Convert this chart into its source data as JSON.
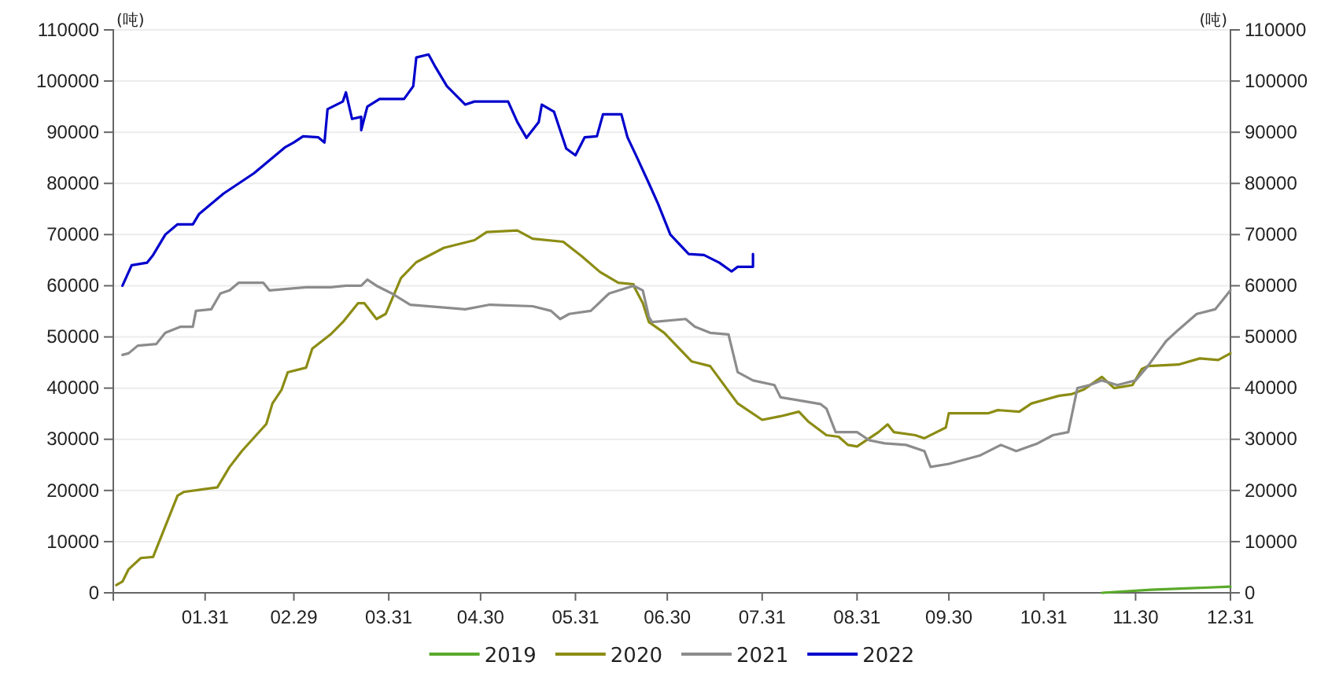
{
  "chart_data": {
    "type": "line",
    "ylabel": "(吨)",
    "y2label": "(吨)",
    "xlim": [
      "--01-01",
      "--12-31"
    ],
    "xticks": [
      {
        "value": "--01-31",
        "label": "01.31"
      },
      {
        "value": "--02-29",
        "label": "02.29"
      },
      {
        "value": "--03-31",
        "label": "03.31"
      },
      {
        "value": "--04-30",
        "label": "04.30"
      },
      {
        "value": "--05-31",
        "label": "05.31"
      },
      {
        "value": "--06-30",
        "label": "06.30"
      },
      {
        "value": "--07-31",
        "label": "07.31"
      },
      {
        "value": "--08-31",
        "label": "08.31"
      },
      {
        "value": "--09-30",
        "label": "09.30"
      },
      {
        "value": "--10-31",
        "label": "10.31"
      },
      {
        "value": "--11-30",
        "label": "11.30"
      },
      {
        "value": "--12-31",
        "label": "12.31"
      }
    ],
    "ylim": [
      0,
      110000
    ],
    "yticks": [
      0,
      10000,
      20000,
      30000,
      40000,
      50000,
      60000,
      70000,
      80000,
      90000,
      100000,
      110000
    ],
    "y2lim": [
      0,
      110000
    ],
    "y2ticks": [
      0,
      10000,
      20000,
      30000,
      40000,
      50000,
      60000,
      70000,
      80000,
      90000,
      100000,
      110000
    ],
    "grid": "y",
    "legend": "bottom",
    "line_style": "solid",
    "marker": "none",
    "series": [
      {
        "name": "2019",
        "color": "#5aaa2a",
        "x": [
          "--11-19",
          "--12-05",
          "--12-31"
        ],
        "values": [
          0,
          600,
          1200
        ]
      },
      {
        "name": "2020",
        "color": "#8c8c14",
        "x": [
          "--01-02",
          "--01-04",
          "--01-06",
          "--01-10",
          "--01-14",
          "--01-18",
          "--01-22",
          "--01-24",
          "--02-04",
          "--02-08",
          "--02-12",
          "--02-20",
          "--02-22",
          "--02-25",
          "--02-27",
          "--03-04",
          "--03-06",
          "--03-12",
          "--03-16",
          "--03-21",
          "--03-23",
          "--03-27",
          "--03-30",
          "--04-04",
          "--04-09",
          "--04-18",
          "--04-28",
          "--05-02",
          "--05-12",
          "--05-17",
          "--05-27",
          "--06-02",
          "--06-08",
          "--06-14",
          "--06-19",
          "--06-19",
          "--06-22",
          "--06-24",
          "--06-29",
          "--07-03",
          "--07-08",
          "--07-14",
          "--07-23",
          "--07-31",
          "--08-06",
          "--08-12",
          "--08-15",
          "--08-21",
          "--08-25",
          "--08-28",
          "--08-31",
          "--09-07",
          "--09-10",
          "--09-12",
          "--09-19",
          "--09-22",
          "--09-29",
          "--09-30",
          "--10-13",
          "--10-16",
          "--10-23",
          "--10-27",
          "--11-05",
          "--11-09",
          "--11-13",
          "--11-19",
          "--11-23",
          "--11-29",
          "--12-02",
          "--12-04",
          "--12-14",
          "--12-21",
          "--12-27",
          "--12-31"
        ],
        "values": [
          1500,
          2200,
          4600,
          6800,
          7000,
          13000,
          19000,
          19700,
          20600,
          24600,
          27700,
          33000,
          37000,
          39700,
          43100,
          44000,
          47700,
          50500,
          52900,
          56600,
          56600,
          53500,
          54500,
          61500,
          64600,
          67400,
          68900,
          70500,
          70800,
          69200,
          68600,
          65800,
          62700,
          60600,
          60300,
          60000,
          56600,
          52900,
          50800,
          48300,
          45200,
          44300,
          37000,
          33800,
          34500,
          35400,
          33500,
          30800,
          30500,
          28900,
          28600,
          31400,
          32900,
          31400,
          30800,
          30200,
          32300,
          35100,
          35100,
          35700,
          35400,
          37000,
          38500,
          38800,
          39700,
          42200,
          40000,
          40600,
          43700,
          44300,
          44600,
          45800,
          45500,
          46800
        ]
      },
      {
        "name": "2021",
        "color": "#8c8c8c",
        "x": [
          "--01-04",
          "--01-06",
          "--01-09",
          "--01-15",
          "--01-18",
          "--01-23",
          "--01-27",
          "--01-28",
          "--02-02",
          "--02-05",
          "--02-08",
          "--02-11",
          "--02-19",
          "--02-21",
          "--03-04",
          "--03-12",
          "--03-17",
          "--03-22",
          "--03-24",
          "--03-27",
          "--04-01",
          "--04-07",
          "--04-25",
          "--05-03",
          "--05-17",
          "--05-23",
          "--05-26",
          "--05-29",
          "--06-05",
          "--06-11",
          "--06-19",
          "--06-22",
          "--06-24",
          "--06-25",
          "--07-06",
          "--07-09",
          "--07-14",
          "--07-20",
          "--07-23",
          "--07-28",
          "--08-04",
          "--08-06",
          "--08-13",
          "--08-19",
          "--08-21",
          "--08-24",
          "--08-31",
          "--09-04",
          "--09-09",
          "--09-16",
          "--09-22",
          "--09-24",
          "--09-30",
          "--10-10",
          "--10-17",
          "--10-22",
          "--10-29",
          "--11-03",
          "--11-08",
          "--11-11",
          "--11-15",
          "--11-19",
          "--11-24",
          "--11-30",
          "--12-04",
          "--12-10",
          "--12-14",
          "--12-20",
          "--12-26",
          "--12-31"
        ],
        "values": [
          46500,
          46800,
          48300,
          48600,
          50800,
          52000,
          52000,
          55100,
          55400,
          58500,
          59100,
          60600,
          60600,
          59100,
          59700,
          59700,
          60000,
          60000,
          61200,
          60000,
          58500,
          56300,
          55400,
          56300,
          56000,
          55100,
          53500,
          54500,
          55100,
          58500,
          60000,
          59100,
          53900,
          52900,
          53500,
          52000,
          50800,
          50500,
          43100,
          41500,
          40600,
          38200,
          37500,
          36900,
          36000,
          31400,
          31400,
          29800,
          29200,
          28900,
          27700,
          24600,
          25200,
          26800,
          28900,
          27700,
          29200,
          30800,
          31400,
          40000,
          40600,
          41500,
          40600,
          41500,
          44300,
          49200,
          51400,
          54500,
          55400,
          59100
        ]
      },
      {
        "name": "2022",
        "color": "#0000cc",
        "x": [
          "--01-04",
          "--01-07",
          "--01-12",
          "--01-14",
          "--01-18",
          "--01-22",
          "--01-27",
          "--01-29",
          "--02-06",
          "--02-11",
          "--02-16",
          "--02-22",
          "--02-26",
          "--02-29",
          "--03-03",
          "--03-08",
          "--03-10",
          "--03-11",
          "--03-16",
          "--03-17",
          "--03-19",
          "--03-22",
          "--03-22",
          "--03-24",
          "--03-28",
          "--04-05",
          "--04-08",
          "--04-09",
          "--04-13",
          "--04-15",
          "--04-19",
          "--04-25",
          "--04-28",
          "--05-09",
          "--05-12",
          "--05-15",
          "--05-19",
          "--05-20",
          "--05-24",
          "--05-28",
          "--05-31",
          "--06-03",
          "--06-07",
          "--06-09",
          "--06-15",
          "--06-17",
          "--06-20",
          "--06-24",
          "--06-27",
          "--07-01",
          "--07-07",
          "--07-12",
          "--07-17",
          "--07-21",
          "--07-23",
          "--07-28",
          "--07-28"
        ],
        "values": [
          60000,
          64000,
          64500,
          66000,
          70000,
          72000,
          72000,
          74000,
          78000,
          80000,
          82000,
          85000,
          87000,
          88000,
          89200,
          89000,
          88000,
          94500,
          96000,
          97800,
          92600,
          93000,
          90400,
          95000,
          96500,
          96500,
          99000,
          104600,
          105200,
          103000,
          99000,
          95400,
          96000,
          96000,
          92000,
          88900,
          92000,
          95400,
          94000,
          86800,
          85500,
          89000,
          89200,
          93500,
          93500,
          89000,
          85200,
          80000,
          76000,
          70000,
          66200,
          66000,
          64500,
          62800,
          63700,
          63700,
          66200
        ]
      }
    ]
  }
}
